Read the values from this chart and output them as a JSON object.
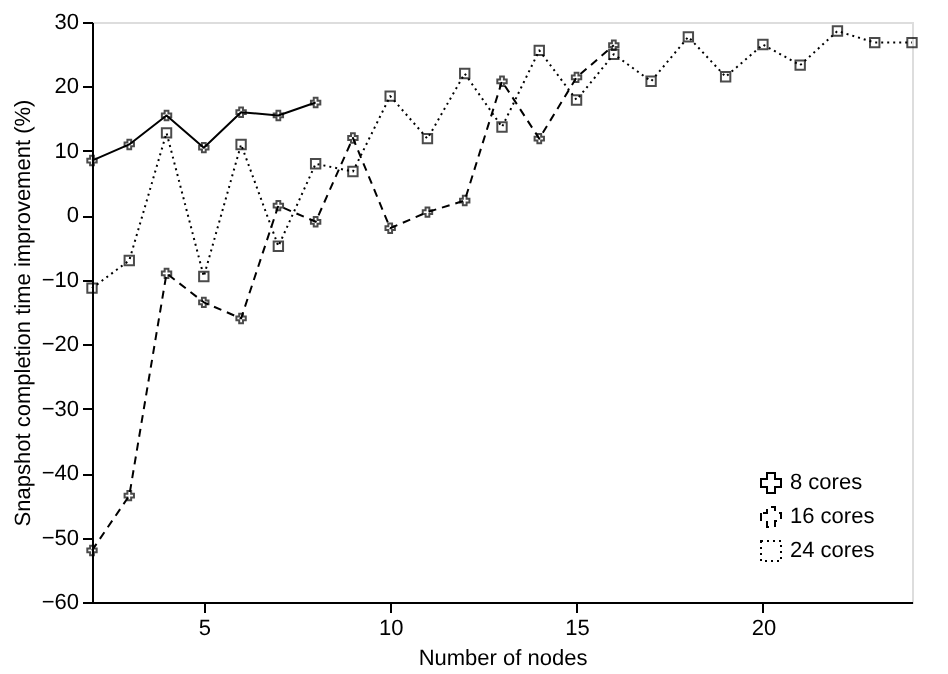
{
  "chart_data": {
    "type": "line",
    "xlabel": "Number of nodes",
    "ylabel": "Snapshot completion time improvement (%)",
    "xlim": [
      2,
      24
    ],
    "xticks": [
      5,
      10,
      15,
      20
    ],
    "ylim": [
      -60,
      30
    ],
    "yticks": [
      -60,
      -50,
      -40,
      -30,
      -20,
      -10,
      0,
      10,
      20,
      30
    ],
    "grid": false,
    "legend": "bottom right",
    "series": [
      {
        "name": "8 cores",
        "color": "#000000",
        "line_style": "solid",
        "marker": "cross",
        "x": [
          2,
          3,
          4,
          5,
          6,
          7,
          8
        ],
        "values": [
          8.5,
          11,
          15.5,
          10.5,
          16,
          15.5,
          17.5
        ]
      },
      {
        "name": "16 cores",
        "color": "#000000",
        "line_style": "dashed",
        "marker": "cross",
        "x": [
          2,
          3,
          4,
          5,
          6,
          7,
          8,
          9,
          10,
          11,
          12,
          13,
          14,
          15,
          16
        ],
        "values": [
          -52,
          -43.5,
          -9,
          -13.5,
          -16,
          1.5,
          -1,
          12,
          -2,
          0.5,
          2.3,
          20.8,
          11.9,
          21.4,
          26.4
        ]
      },
      {
        "name": "24 cores",
        "color": "#000000",
        "line_style": "dotted",
        "marker": "square",
        "x": [
          2,
          3,
          4,
          5,
          6,
          7,
          8,
          9,
          10,
          11,
          12,
          13,
          14,
          15,
          16,
          17,
          18,
          19,
          20,
          21,
          22,
          23,
          24
        ],
        "values": [
          -11.3,
          -7,
          12.8,
          -9.5,
          11,
          -4.8,
          8,
          6.8,
          18.5,
          11.9,
          22,
          13.7,
          25.6,
          17.9,
          25,
          20.8,
          27.7,
          21.5,
          26.5,
          23.3,
          28.6,
          26.8,
          26.8
        ]
      }
    ]
  }
}
